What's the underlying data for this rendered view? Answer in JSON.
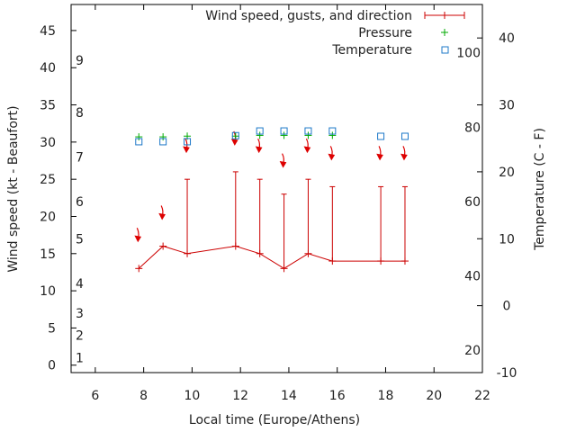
{
  "chart_data": {
    "type": "line",
    "title": "",
    "xlabel": "Local time (Europe/Athens)",
    "ylabel_left": "Wind speed (kt - Beaufort)",
    "ylabel_right": "Temperature (C - F)",
    "xlim": [
      5,
      22
    ],
    "x_ticks": [
      6,
      8,
      10,
      12,
      14,
      16,
      18,
      20,
      22
    ],
    "ylim_left": [
      -1,
      48.5
    ],
    "y_ticks_left": [
      0,
      5,
      10,
      15,
      20,
      25,
      30,
      35,
      40,
      45
    ],
    "beaufort_labels": [
      {
        "label": "1",
        "kt": 1
      },
      {
        "label": "2",
        "kt": 4
      },
      {
        "label": "3",
        "kt": 7
      },
      {
        "label": "4",
        "kt": 11
      },
      {
        "label": "5",
        "kt": 17
      },
      {
        "label": "6",
        "kt": 22
      },
      {
        "label": "7",
        "kt": 28
      },
      {
        "label": "8",
        "kt": 34
      },
      {
        "label": "9",
        "kt": 41
      }
    ],
    "ylim_celsius": [
      -10,
      45
    ],
    "y_ticks_celsius": [
      -10,
      0,
      10,
      20,
      30,
      40
    ],
    "fahrenheit_labels": [
      "20",
      "40",
      "60",
      "80",
      "100"
    ],
    "legend": {
      "placement": "top-right",
      "entries": [
        "Wind speed, gusts, and direction",
        "Pressure",
        "Temperature"
      ]
    },
    "series": [
      {
        "name": "Wind speed, gusts, and direction",
        "color": "#cc0000",
        "x": [
          7.8,
          8.8,
          9.8,
          11.8,
          12.8,
          13.8,
          14.8,
          15.8,
          17.8,
          18.8
        ],
        "values": [
          13,
          16,
          15,
          16,
          15,
          13,
          15,
          14,
          14,
          14
        ],
        "gusts": [
          null,
          null,
          25,
          26,
          25,
          23,
          25,
          24,
          24,
          24
        ],
        "direction_y": [
          17,
          20,
          29,
          30,
          29,
          27,
          29,
          28,
          28,
          28
        ]
      },
      {
        "name": "Pressure",
        "color": "#00aa00",
        "x": [
          7.8,
          8.8,
          9.8,
          11.8,
          12.8,
          13.8,
          14.8,
          15.8
        ],
        "values": [
          30.7,
          30.7,
          30.8,
          30.8,
          30.9,
          30.9,
          30.9,
          30.9
        ]
      },
      {
        "name": "Temperature",
        "color": "#1c78c8",
        "x": [
          7.8,
          8.8,
          9.8,
          11.8,
          12.8,
          13.8,
          14.8,
          15.8,
          17.8,
          18.8
        ],
        "values": [
          24.5,
          24.5,
          24.5,
          25.4,
          26.1,
          26.1,
          26.1,
          26.1,
          25.3,
          25.3
        ]
      }
    ]
  }
}
